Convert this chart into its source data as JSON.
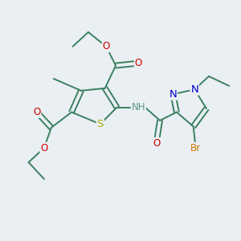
{
  "bg_color": "#eaeff3",
  "colors": {
    "C": "#3a8060",
    "N": "#0000cc",
    "O": "#cc0000",
    "S": "#aaaa00",
    "Br": "#cc7700",
    "NH": "#5a9a80",
    "bond": "#3a8060"
  },
  "font_size": 8.5,
  "line_width": 1.4,
  "figsize": [
    3.0,
    3.0
  ],
  "dpi": 100
}
